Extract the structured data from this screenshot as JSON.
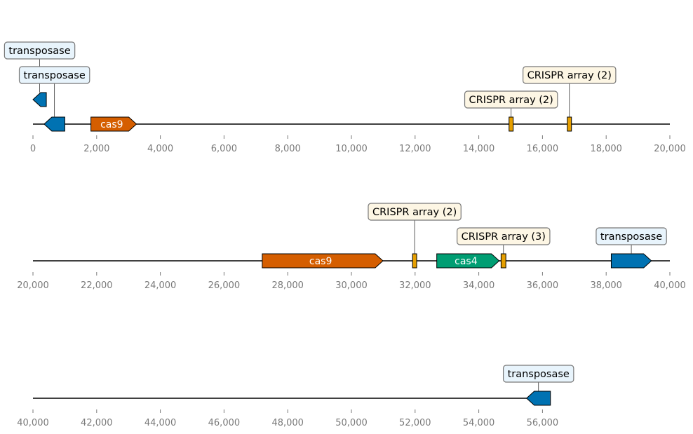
{
  "chart_data": {
    "type": "genome-map",
    "colors": {
      "transposase": "#0072b2",
      "cas9": "#d55e00",
      "cas4": "#009e73",
      "crispr": "#e69f00",
      "transposase_box": "#e8f4fc",
      "crispr_box": "#fdf6e4",
      "box_border": "#777777",
      "axis": "#000000",
      "tick_text": "#7a7a7a"
    },
    "rows": [
      {
        "start": 0,
        "end": 20000,
        "ticks": [
          {
            "value": 0,
            "label": "0"
          },
          {
            "value": 2000,
            "label": "2,000"
          },
          {
            "value": 4000,
            "label": "4,000"
          },
          {
            "value": 6000,
            "label": "6,000"
          },
          {
            "value": 8000,
            "label": "8,000"
          },
          {
            "value": 10000,
            "label": "10,000"
          },
          {
            "value": 12000,
            "label": "12,000"
          },
          {
            "value": 14000,
            "label": "14,000"
          },
          {
            "value": 16000,
            "label": "16,000"
          },
          {
            "value": 18000,
            "label": "18,000"
          },
          {
            "value": 20000,
            "label": "20,000"
          }
        ],
        "features": [
          {
            "name": "transposase-a",
            "start": 0,
            "end": 420,
            "strand": -1,
            "kind": "transposase",
            "level": 1,
            "label": "",
            "callout": "transposase",
            "callout_level": 3
          },
          {
            "name": "transposase-b",
            "start": 350,
            "end": 1000,
            "strand": -1,
            "kind": "transposase",
            "level": 0,
            "label": "",
            "callout": "transposase",
            "callout_level": 2
          },
          {
            "name": "cas9-a",
            "start": 1820,
            "end": 3250,
            "strand": 1,
            "kind": "cas9",
            "level": 0,
            "label": "cas9",
            "callout": ""
          },
          {
            "name": "crispr-a",
            "start": 14950,
            "end": 15080,
            "strand": 0,
            "kind": "crispr",
            "level": 0,
            "label": "",
            "callout": "CRISPR array (2)",
            "callout_level": 1
          },
          {
            "name": "crispr-b",
            "start": 16780,
            "end": 16910,
            "strand": 0,
            "kind": "crispr",
            "level": 0,
            "label": "",
            "callout": "CRISPR array (2)",
            "callout_level": 2
          }
        ]
      },
      {
        "start": 20000,
        "end": 40000,
        "ticks": [
          {
            "value": 20000,
            "label": "20,000"
          },
          {
            "value": 22000,
            "label": "22,000"
          },
          {
            "value": 24000,
            "label": "24,000"
          },
          {
            "value": 26000,
            "label": "26,000"
          },
          {
            "value": 28000,
            "label": "28,000"
          },
          {
            "value": 30000,
            "label": "30,000"
          },
          {
            "value": 32000,
            "label": "32,000"
          },
          {
            "value": 34000,
            "label": "34,000"
          },
          {
            "value": 36000,
            "label": "36,000"
          },
          {
            "value": 38000,
            "label": "38,000"
          },
          {
            "value": 40000,
            "label": "40,000"
          }
        ],
        "features": [
          {
            "name": "cas9-b",
            "start": 27200,
            "end": 30990,
            "strand": 1,
            "kind": "cas9",
            "level": 0,
            "label": "cas9",
            "callout": ""
          },
          {
            "name": "crispr-c",
            "start": 31920,
            "end": 32050,
            "strand": 0,
            "kind": "crispr",
            "level": 0,
            "label": "",
            "callout": "CRISPR array (2)",
            "callout_level": 2
          },
          {
            "name": "cas4",
            "start": 32680,
            "end": 34640,
            "strand": 1,
            "kind": "cas4",
            "level": 0,
            "label": "cas4",
            "callout": ""
          },
          {
            "name": "crispr-d",
            "start": 34700,
            "end": 34850,
            "strand": 0,
            "kind": "crispr",
            "level": 0,
            "label": "",
            "callout": "CRISPR array (3)",
            "callout_level": 1
          },
          {
            "name": "transposase-c",
            "start": 38160,
            "end": 39420,
            "strand": 1,
            "kind": "transposase",
            "level": 0,
            "label": "",
            "callout": "transposase",
            "callout_level": 1
          }
        ]
      },
      {
        "start": 40000,
        "end": 60000,
        "ticks": [
          {
            "value": 40000,
            "label": "40,000"
          },
          {
            "value": 42000,
            "label": "42,000"
          },
          {
            "value": 44000,
            "label": "44,000"
          },
          {
            "value": 46000,
            "label": "46,000"
          },
          {
            "value": 48000,
            "label": "48,000"
          },
          {
            "value": 50000,
            "label": "50,000"
          },
          {
            "value": 52000,
            "label": "52,000"
          },
          {
            "value": 54000,
            "label": "54,000"
          },
          {
            "value": 56000,
            "label": "56,000"
          }
        ],
        "line_end": 56200,
        "features": [
          {
            "name": "transposase-d",
            "start": 55500,
            "end": 56250,
            "strand": -1,
            "kind": "transposase",
            "level": 0,
            "label": "",
            "callout": "transposase",
            "callout_level": 1
          }
        ]
      }
    ]
  }
}
